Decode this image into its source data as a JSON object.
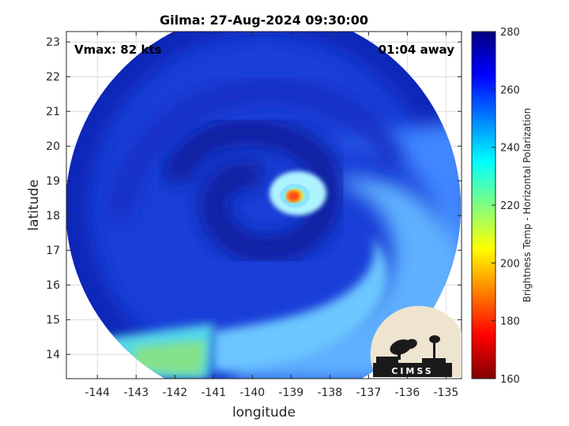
{
  "title": "Gilma: 27-Aug-2024 09:30:00",
  "vmax_label": "Vmax: 82 kts",
  "time_label": "01:04 away",
  "logo_text": "CIMSS",
  "colors": {
    "deep_blue": "#0a1f9a",
    "blue": "#1f4fe6",
    "light_blue": "#5aa8ff",
    "cyan": "#55e0ff",
    "green": "#6edc8a",
    "hot_yellow": "#ffd21a",
    "hot_red": "#ff3a10"
  },
  "chart_data": {
    "type": "heatmap",
    "title": "Gilma: 27-Aug-2024 09:30:00",
    "xlabel": "longitude",
    "ylabel": "latitude",
    "xlim": [
      -144.8,
      -134.6
    ],
    "ylim": [
      13.3,
      23.3
    ],
    "grid": true,
    "x_ticks": [
      -144,
      -143,
      -142,
      -141,
      -140,
      -139,
      -138,
      -137,
      -136,
      -135
    ],
    "y_ticks": [
      14,
      15,
      16,
      17,
      18,
      19,
      20,
      21,
      22,
      23
    ],
    "colorbar": {
      "label": "Brightness Temp - Horizontal Polarization",
      "min": 160,
      "max": 280,
      "ticks": [
        160,
        180,
        200,
        220,
        240,
        260,
        280
      ],
      "colormap": "jet"
    },
    "storm_center": {
      "lon": -139.1,
      "lat": 18.5
    },
    "warm_core": {
      "lon": -139.1,
      "lat": 18.6,
      "min_temp": 190
    }
  }
}
